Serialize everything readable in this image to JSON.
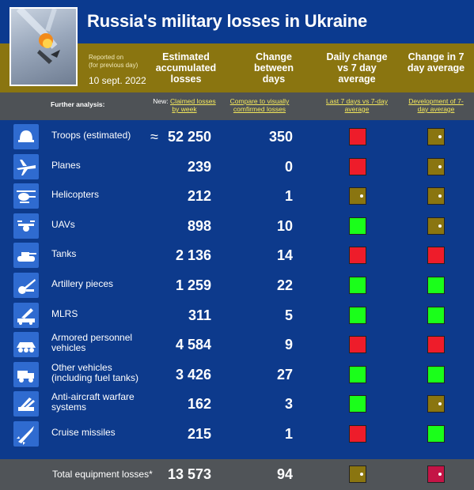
{
  "header": {
    "title": "Russia's military losses in Ukraine",
    "reported_on": "Reported on",
    "reported_note": "(for previous day)",
    "date": "10 sept. 2022"
  },
  "columns": {
    "estimated": "Estimated accumulated losses",
    "change": "Change between days",
    "daily": "Daily change vs 7 day average",
    "change7": "Change in 7 day average"
  },
  "analysis": {
    "label": "Further analysis:",
    "new_prefix": "New:",
    "claimed": "Claimed losses by week",
    "compare": "Compare to visually comfirmed losses",
    "last7": "Last 7 days vs 7-day average",
    "development": "Development of 7-day average"
  },
  "colors": {
    "red": "#ee1c2a",
    "green": "#1aff1a",
    "olive": "#8a7510",
    "magenta": "#c41446",
    "blue_bg": "#0d3a8c",
    "gold_band": "#8a7510",
    "grey_bar": "#4e5256",
    "icon_tile": "#2f6bd0"
  },
  "chart_data": {
    "type": "table",
    "title": "Russia's military losses in Ukraine",
    "date": "10 sept. 2022",
    "rows": [
      {
        "label": "Troops (estimated)",
        "approx_sign": "≈",
        "value": "52 250",
        "change": "350",
        "daily": "red",
        "change7": "olive",
        "icon": "helmet-icon"
      },
      {
        "label": "Planes",
        "approx_sign": "",
        "value": "239",
        "change": "0",
        "daily": "red",
        "change7": "olive",
        "icon": "plane-icon"
      },
      {
        "label": "Helicopters",
        "approx_sign": "",
        "value": "212",
        "change": "1",
        "daily": "olive",
        "change7": "olive",
        "icon": "helicopter-icon"
      },
      {
        "label": "UAVs",
        "approx_sign": "",
        "value": "898",
        "change": "10",
        "daily": "green",
        "change7": "olive",
        "icon": "drone-icon"
      },
      {
        "label": "Tanks",
        "approx_sign": "",
        "value": "2 136",
        "change": "14",
        "daily": "red",
        "change7": "red",
        "icon": "tank-icon"
      },
      {
        "label": "Artillery pieces",
        "approx_sign": "",
        "value": "1 259",
        "change": "22",
        "daily": "green",
        "change7": "green",
        "icon": "artillery-icon"
      },
      {
        "label": "MLRS",
        "approx_sign": "",
        "value": "311",
        "change": "5",
        "daily": "green",
        "change7": "green",
        "icon": "mlrs-icon"
      },
      {
        "label": "Armored personnel vehicles",
        "approx_sign": "",
        "value": "4 584",
        "change": "9",
        "daily": "red",
        "change7": "red",
        "icon": "apc-icon"
      },
      {
        "label": "Other vehicles (including fuel tanks)",
        "approx_sign": "",
        "value": "3 426",
        "change": "27",
        "daily": "green",
        "change7": "green",
        "icon": "truck-icon"
      },
      {
        "label": "Anti-aircraft warfare systems",
        "approx_sign": "",
        "value": "162",
        "change": "3",
        "daily": "green",
        "change7": "olive",
        "icon": "anti-aircraft-icon"
      },
      {
        "label": "Cruise missiles",
        "approx_sign": "",
        "value": "215",
        "change": "1",
        "daily": "red",
        "change7": "green",
        "icon": "missile-icon"
      }
    ],
    "total": {
      "label": "Total equipment losses*",
      "value": "13 573",
      "change": "94",
      "daily": "olive",
      "change7": "magenta"
    }
  }
}
